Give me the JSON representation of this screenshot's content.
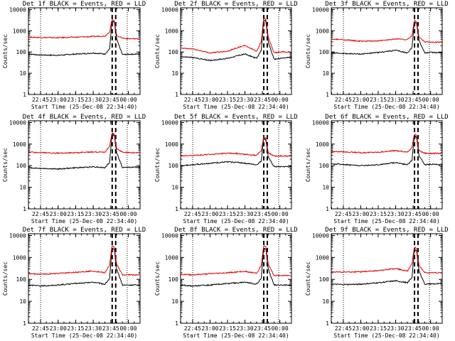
{
  "ylabel": "Counts/sec",
  "xlabel": "Start Time (25-Dec-08 22:34:40)",
  "x_ticks": [
    "22:45",
    "23:00",
    "23:15",
    "23:30",
    "23:45",
    "00:00"
  ],
  "y_ticks": [
    "1",
    "10",
    "100",
    "1000",
    "10000"
  ],
  "colors": {
    "events": "#000000",
    "lld": "#e00000"
  },
  "chart_data": [
    {
      "type": "line",
      "title": "Det 1f BLACK = Events, RED = LLD",
      "ylim": [
        1,
        12000
      ],
      "yscale": "log",
      "series": [
        {
          "name": "Events",
          "color": "#000000",
          "x": [
            "22:35",
            "22:45",
            "23:00",
            "23:15",
            "23:25",
            "23:30",
            "23:40",
            "23:44",
            "23:46",
            "23:48",
            "23:50",
            "23:55",
            "00:00",
            "00:08"
          ],
          "y": [
            80,
            72,
            70,
            80,
            85,
            90,
            80,
            140,
            2800,
            2500,
            400,
            75,
            78,
            80
          ]
        },
        {
          "name": "LLD",
          "color": "#e00000",
          "x": [
            "22:35",
            "22:45",
            "23:00",
            "23:15",
            "23:25",
            "23:30",
            "23:40",
            "23:44",
            "23:46",
            "23:48",
            "23:50",
            "23:55",
            "00:00",
            "00:08"
          ],
          "y": [
            500,
            480,
            470,
            500,
            520,
            540,
            560,
            900,
            3200,
            3000,
            600,
            450,
            420,
            420
          ]
        }
      ]
    },
    {
      "type": "line",
      "title": "Det 2f BLACK = Events, RED = LLD",
      "ylim": [
        1,
        12000
      ],
      "yscale": "log",
      "series": [
        {
          "name": "Events",
          "color": "#000000",
          "x": [
            "22:35",
            "22:45",
            "23:00",
            "23:15",
            "23:25",
            "23:30",
            "23:40",
            "23:44",
            "23:46",
            "23:48",
            "23:50",
            "23:55",
            "00:00",
            "00:08"
          ],
          "y": [
            60,
            55,
            40,
            50,
            70,
            80,
            50,
            120,
            3000,
            2800,
            300,
            45,
            50,
            55
          ]
        },
        {
          "name": "LLD",
          "color": "#e00000",
          "x": [
            "22:35",
            "22:45",
            "23:00",
            "23:15",
            "23:25",
            "23:30",
            "23:40",
            "23:44",
            "23:46",
            "23:48",
            "23:50",
            "23:55",
            "00:00",
            "00:08"
          ],
          "y": [
            150,
            140,
            90,
            110,
            170,
            200,
            110,
            300,
            3800,
            3500,
            500,
            90,
            100,
            100
          ]
        }
      ]
    },
    {
      "type": "line",
      "title": "Det 3f BLACK = Events, RED = LLD",
      "ylim": [
        1,
        12000
      ],
      "yscale": "log",
      "series": [
        {
          "name": "Events",
          "color": "#000000",
          "x": [
            "22:35",
            "22:45",
            "23:00",
            "23:15",
            "23:25",
            "23:30",
            "23:40",
            "23:44",
            "23:46",
            "23:48",
            "23:50",
            "23:55",
            "00:00",
            "00:08"
          ],
          "y": [
            90,
            85,
            80,
            95,
            110,
            120,
            90,
            160,
            2500,
            2300,
            350,
            90,
            95,
            95
          ]
        },
        {
          "name": "LLD",
          "color": "#e00000",
          "x": [
            "22:35",
            "22:45",
            "23:00",
            "23:15",
            "23:25",
            "23:30",
            "23:40",
            "23:44",
            "23:46",
            "23:48",
            "23:50",
            "23:55",
            "00:00",
            "00:08"
          ],
          "y": [
            400,
            380,
            320,
            330,
            380,
            420,
            380,
            600,
            3000,
            2800,
            500,
            300,
            290,
            290
          ]
        }
      ]
    },
    {
      "type": "line",
      "title": "Det 4f BLACK = Events, RED = LLD",
      "ylim": [
        1,
        12000
      ],
      "yscale": "log",
      "series": [
        {
          "name": "Events",
          "color": "#000000",
          "x": [
            "22:35",
            "22:45",
            "23:00",
            "23:15",
            "23:25",
            "23:30",
            "23:40",
            "23:44",
            "23:46",
            "23:48",
            "23:50",
            "23:55",
            "00:00",
            "00:08"
          ],
          "y": [
            80,
            75,
            70,
            80,
            85,
            90,
            80,
            140,
            2800,
            2600,
            400,
            80,
            85,
            85
          ]
        },
        {
          "name": "LLD",
          "color": "#e00000",
          "x": [
            "22:35",
            "22:45",
            "23:00",
            "23:15",
            "23:25",
            "23:30",
            "23:40",
            "23:44",
            "23:46",
            "23:48",
            "23:50",
            "23:55",
            "00:00",
            "00:08"
          ],
          "y": [
            420,
            400,
            380,
            400,
            420,
            430,
            420,
            800,
            3200,
            3000,
            600,
            420,
            400,
            400
          ]
        }
      ]
    },
    {
      "type": "line",
      "title": "Det 5f BLACK = Events, RED = LLD",
      "ylim": [
        1,
        12000
      ],
      "yscale": "log",
      "series": [
        {
          "name": "Events",
          "color": "#000000",
          "x": [
            "22:35",
            "22:45",
            "23:00",
            "23:15",
            "23:25",
            "23:30",
            "23:40",
            "23:44",
            "23:46",
            "23:48",
            "23:50",
            "23:55",
            "00:00",
            "00:08"
          ],
          "y": [
            100,
            110,
            130,
            150,
            140,
            130,
            110,
            160,
            1800,
            1600,
            250,
            90,
            90,
            90
          ]
        },
        {
          "name": "LLD",
          "color": "#e00000",
          "x": [
            "22:35",
            "22:45",
            "23:00",
            "23:15",
            "23:25",
            "23:30",
            "23:40",
            "23:44",
            "23:46",
            "23:48",
            "23:50",
            "23:55",
            "00:00",
            "00:08"
          ],
          "y": [
            280,
            300,
            330,
            380,
            360,
            340,
            300,
            500,
            2100,
            1900,
            400,
            280,
            280,
            280
          ]
        }
      ]
    },
    {
      "type": "line",
      "title": "Det 6f BLACK = Events, RED = LLD",
      "ylim": [
        1,
        12000
      ],
      "yscale": "log",
      "series": [
        {
          "name": "Events",
          "color": "#000000",
          "x": [
            "22:35",
            "22:45",
            "23:00",
            "23:15",
            "23:25",
            "23:30",
            "23:40",
            "23:44",
            "23:46",
            "23:48",
            "23:50",
            "23:55",
            "00:00",
            "00:08"
          ],
          "y": [
            120,
            115,
            100,
            110,
            130,
            140,
            110,
            180,
            2300,
            2100,
            300,
            110,
            115,
            115
          ]
        },
        {
          "name": "LLD",
          "color": "#e00000",
          "x": [
            "22:35",
            "22:45",
            "23:00",
            "23:15",
            "23:25",
            "23:30",
            "23:40",
            "23:44",
            "23:46",
            "23:48",
            "23:50",
            "23:55",
            "00:00",
            "00:08"
          ],
          "y": [
            450,
            440,
            400,
            420,
            470,
            500,
            420,
            700,
            2800,
            2600,
            500,
            380,
            370,
            370
          ]
        }
      ]
    },
    {
      "type": "line",
      "title": "Det 7f BLACK = Events, RED = LLD",
      "ylim": [
        1,
        12000
      ],
      "yscale": "log",
      "series": [
        {
          "name": "Events",
          "color": "#000000",
          "x": [
            "22:35",
            "22:45",
            "23:00",
            "23:15",
            "23:25",
            "23:30",
            "23:40",
            "23:44",
            "23:46",
            "23:48",
            "23:50",
            "23:55",
            "00:00",
            "00:08"
          ],
          "y": [
            55,
            50,
            55,
            65,
            70,
            75,
            60,
            110,
            2500,
            2300,
            300,
            55,
            55,
            55
          ]
        },
        {
          "name": "LLD",
          "color": "#e00000",
          "x": [
            "22:35",
            "22:45",
            "23:00",
            "23:15",
            "23:25",
            "23:30",
            "23:40",
            "23:44",
            "23:46",
            "23:48",
            "23:50",
            "23:55",
            "00:00",
            "00:08"
          ],
          "y": [
            180,
            170,
            185,
            210,
            230,
            240,
            200,
            450,
            3200,
            3000,
            500,
            160,
            160,
            160
          ]
        }
      ]
    },
    {
      "type": "line",
      "title": "Det 8f BLACK = Events, RED = LLD",
      "ylim": [
        1,
        12000
      ],
      "yscale": "log",
      "series": [
        {
          "name": "Events",
          "color": "#000000",
          "x": [
            "22:35",
            "22:45",
            "23:00",
            "23:15",
            "23:25",
            "23:30",
            "23:40",
            "23:44",
            "23:46",
            "23:48",
            "23:50",
            "23:55",
            "00:00",
            "00:08"
          ],
          "y": [
            55,
            50,
            55,
            65,
            70,
            75,
            60,
            110,
            2600,
            2400,
            300,
            55,
            55,
            55
          ]
        },
        {
          "name": "LLD",
          "color": "#e00000",
          "x": [
            "22:35",
            "22:45",
            "23:00",
            "23:15",
            "23:25",
            "23:30",
            "23:40",
            "23:44",
            "23:46",
            "23:48",
            "23:50",
            "23:55",
            "00:00",
            "00:08"
          ],
          "y": [
            170,
            160,
            180,
            200,
            220,
            230,
            190,
            420,
            3300,
            3100,
            500,
            150,
            150,
            150
          ]
        }
      ]
    },
    {
      "type": "line",
      "title": "Det 9f BLACK = Events, RED = LLD",
      "ylim": [
        1,
        12000
      ],
      "yscale": "log",
      "series": [
        {
          "name": "Events",
          "color": "#000000",
          "x": [
            "22:35",
            "22:45",
            "23:00",
            "23:15",
            "23:25",
            "23:30",
            "23:40",
            "23:44",
            "23:46",
            "23:48",
            "23:50",
            "23:55",
            "00:00",
            "00:08"
          ],
          "y": [
            60,
            58,
            60,
            70,
            80,
            85,
            70,
            120,
            2200,
            2000,
            250,
            60,
            62,
            62
          ]
        },
        {
          "name": "LLD",
          "color": "#e00000",
          "x": [
            "22:35",
            "22:45",
            "23:00",
            "23:15",
            "23:25",
            "23:30",
            "23:40",
            "23:44",
            "23:46",
            "23:48",
            "23:50",
            "23:55",
            "00:00",
            "00:08"
          ],
          "y": [
            220,
            215,
            220,
            250,
            290,
            310,
            240,
            500,
            2900,
            2700,
            450,
            200,
            200,
            200
          ]
        }
      ]
    }
  ]
}
